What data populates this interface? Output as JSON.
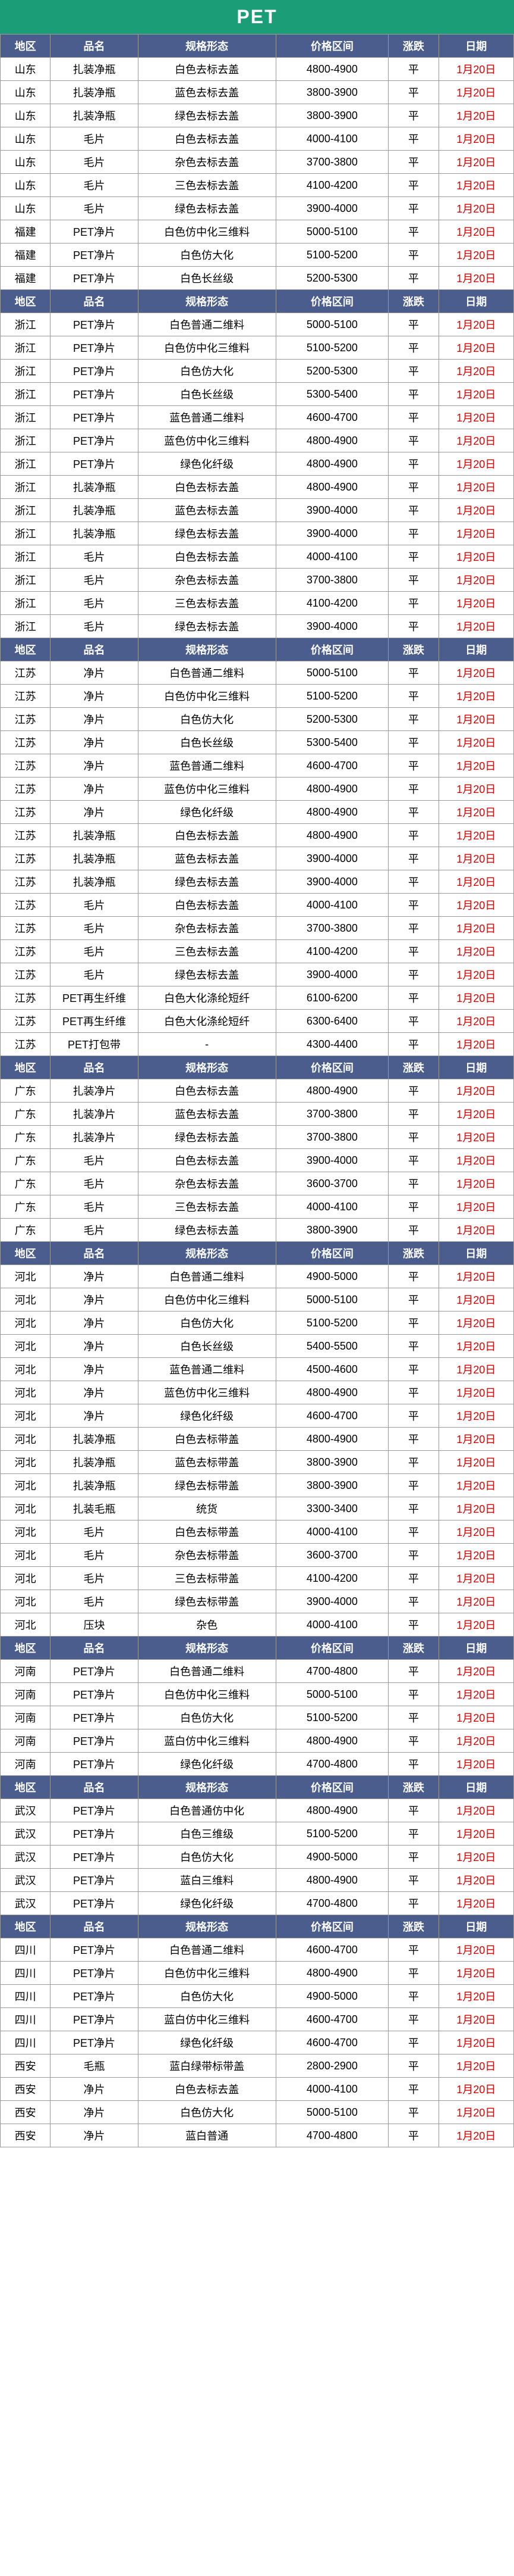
{
  "title": "PET",
  "headers": [
    "地区",
    "品名",
    "规格形态",
    "价格区间",
    "涨跌",
    "日期"
  ],
  "sections": [
    {
      "header": true,
      "rows": [
        {
          "r": "山东",
          "n": "扎装净瓶",
          "s": "白色去标去盖",
          "p": "4800-4900",
          "t": "平",
          "d": "1月20日"
        },
        {
          "r": "山东",
          "n": "扎装净瓶",
          "s": "蓝色去标去盖",
          "p": "3800-3900",
          "t": "平",
          "d": "1月20日"
        },
        {
          "r": "山东",
          "n": "扎装净瓶",
          "s": "绿色去标去盖",
          "p": "3800-3900",
          "t": "平",
          "d": "1月20日"
        },
        {
          "r": "山东",
          "n": "毛片",
          "s": "白色去标去盖",
          "p": "4000-4100",
          "t": "平",
          "d": "1月20日"
        },
        {
          "r": "山东",
          "n": "毛片",
          "s": "杂色去标去盖",
          "p": "3700-3800",
          "t": "平",
          "d": "1月20日"
        },
        {
          "r": "山东",
          "n": "毛片",
          "s": "三色去标去盖",
          "p": "4100-4200",
          "t": "平",
          "d": "1月20日"
        },
        {
          "r": "山东",
          "n": "毛片",
          "s": "绿色去标去盖",
          "p": "3900-4000",
          "t": "平",
          "d": "1月20日"
        },
        {
          "r": "福建",
          "n": "PET净片",
          "s": "白色仿中化三维料",
          "p": "5000-5100",
          "t": "平",
          "d": "1月20日"
        },
        {
          "r": "福建",
          "n": "PET净片",
          "s": "白色仿大化",
          "p": "5100-5200",
          "t": "平",
          "d": "1月20日"
        },
        {
          "r": "福建",
          "n": "PET净片",
          "s": "白色长丝级",
          "p": "5200-5300",
          "t": "平",
          "d": "1月20日"
        }
      ]
    },
    {
      "header": true,
      "rows": [
        {
          "r": "浙江",
          "n": "PET净片",
          "s": "白色普通二维料",
          "p": "5000-5100",
          "t": "平",
          "d": "1月20日"
        },
        {
          "r": "浙江",
          "n": "PET净片",
          "s": "白色仿中化三维料",
          "p": "5100-5200",
          "t": "平",
          "d": "1月20日"
        },
        {
          "r": "浙江",
          "n": "PET净片",
          "s": "白色仿大化",
          "p": "5200-5300",
          "t": "平",
          "d": "1月20日"
        },
        {
          "r": "浙江",
          "n": "PET净片",
          "s": "白色长丝级",
          "p": "5300-5400",
          "t": "平",
          "d": "1月20日"
        },
        {
          "r": "浙江",
          "n": "PET净片",
          "s": "蓝色普通二维料",
          "p": "4600-4700",
          "t": "平",
          "d": "1月20日"
        },
        {
          "r": "浙江",
          "n": "PET净片",
          "s": "蓝色仿中化三维料",
          "p": "4800-4900",
          "t": "平",
          "d": "1月20日"
        },
        {
          "r": "浙江",
          "n": "PET净片",
          "s": "绿色化纤级",
          "p": "4800-4900",
          "t": "平",
          "d": "1月20日"
        },
        {
          "r": "浙江",
          "n": "扎装净瓶",
          "s": "白色去标去盖",
          "p": "4800-4900",
          "t": "平",
          "d": "1月20日"
        },
        {
          "r": "浙江",
          "n": "扎装净瓶",
          "s": "蓝色去标去盖",
          "p": "3900-4000",
          "t": "平",
          "d": "1月20日"
        },
        {
          "r": "浙江",
          "n": "扎装净瓶",
          "s": "绿色去标去盖",
          "p": "3900-4000",
          "t": "平",
          "d": "1月20日"
        },
        {
          "r": "浙江",
          "n": "毛片",
          "s": "白色去标去盖",
          "p": "4000-4100",
          "t": "平",
          "d": "1月20日"
        },
        {
          "r": "浙江",
          "n": "毛片",
          "s": "杂色去标去盖",
          "p": "3700-3800",
          "t": "平",
          "d": "1月20日"
        },
        {
          "r": "浙江",
          "n": "毛片",
          "s": "三色去标去盖",
          "p": "4100-4200",
          "t": "平",
          "d": "1月20日"
        },
        {
          "r": "浙江",
          "n": "毛片",
          "s": "绿色去标去盖",
          "p": "3900-4000",
          "t": "平",
          "d": "1月20日"
        }
      ]
    },
    {
      "header": true,
      "rows": [
        {
          "r": "江苏",
          "n": "净片",
          "s": "白色普通二维料",
          "p": "5000-5100",
          "t": "平",
          "d": "1月20日"
        },
        {
          "r": "江苏",
          "n": "净片",
          "s": "白色仿中化三维料",
          "p": "5100-5200",
          "t": "平",
          "d": "1月20日"
        },
        {
          "r": "江苏",
          "n": "净片",
          "s": "白色仿大化",
          "p": "5200-5300",
          "t": "平",
          "d": "1月20日"
        },
        {
          "r": "江苏",
          "n": "净片",
          "s": "白色长丝级",
          "p": "5300-5400",
          "t": "平",
          "d": "1月20日"
        },
        {
          "r": "江苏",
          "n": "净片",
          "s": "蓝色普通二维料",
          "p": "4600-4700",
          "t": "平",
          "d": "1月20日"
        },
        {
          "r": "江苏",
          "n": "净片",
          "s": "蓝色仿中化三维料",
          "p": "4800-4900",
          "t": "平",
          "d": "1月20日"
        },
        {
          "r": "江苏",
          "n": "净片",
          "s": "绿色化纤级",
          "p": "4800-4900",
          "t": "平",
          "d": "1月20日"
        },
        {
          "r": "江苏",
          "n": "扎装净瓶",
          "s": "白色去标去盖",
          "p": "4800-4900",
          "t": "平",
          "d": "1月20日"
        },
        {
          "r": "江苏",
          "n": "扎装净瓶",
          "s": "蓝色去标去盖",
          "p": "3900-4000",
          "t": "平",
          "d": "1月20日"
        },
        {
          "r": "江苏",
          "n": "扎装净瓶",
          "s": "绿色去标去盖",
          "p": "3900-4000",
          "t": "平",
          "d": "1月20日"
        },
        {
          "r": "江苏",
          "n": "毛片",
          "s": "白色去标去盖",
          "p": "4000-4100",
          "t": "平",
          "d": "1月20日"
        },
        {
          "r": "江苏",
          "n": "毛片",
          "s": "杂色去标去盖",
          "p": "3700-3800",
          "t": "平",
          "d": "1月20日"
        },
        {
          "r": "江苏",
          "n": "毛片",
          "s": "三色去标去盖",
          "p": "4100-4200",
          "t": "平",
          "d": "1月20日"
        },
        {
          "r": "江苏",
          "n": "毛片",
          "s": "绿色去标去盖",
          "p": "3900-4000",
          "t": "平",
          "d": "1月20日"
        },
        {
          "r": "江苏",
          "n": "PET再生纤维",
          "s": "白色大化涤纶短纤",
          "p": "6100-6200",
          "t": "平",
          "d": "1月20日"
        },
        {
          "r": "江苏",
          "n": "PET再生纤维",
          "s": "白色大化涤纶短纤",
          "p": "6300-6400",
          "t": "平",
          "d": "1月20日"
        },
        {
          "r": "江苏",
          "n": "PET打包带",
          "s": "-",
          "p": "4300-4400",
          "t": "平",
          "d": "1月20日"
        }
      ]
    },
    {
      "header": true,
      "rows": [
        {
          "r": "广东",
          "n": "扎装净片",
          "s": "白色去标去盖",
          "p": "4800-4900",
          "t": "平",
          "d": "1月20日"
        },
        {
          "r": "广东",
          "n": "扎装净片",
          "s": "蓝色去标去盖",
          "p": "3700-3800",
          "t": "平",
          "d": "1月20日"
        },
        {
          "r": "广东",
          "n": "扎装净片",
          "s": "绿色去标去盖",
          "p": "3700-3800",
          "t": "平",
          "d": "1月20日"
        },
        {
          "r": "广东",
          "n": "毛片",
          "s": "白色去标去盖",
          "p": "3900-4000",
          "t": "平",
          "d": "1月20日"
        },
        {
          "r": "广东",
          "n": "毛片",
          "s": "杂色去标去盖",
          "p": "3600-3700",
          "t": "平",
          "d": "1月20日"
        },
        {
          "r": "广东",
          "n": "毛片",
          "s": "三色去标去盖",
          "p": "4000-4100",
          "t": "平",
          "d": "1月20日"
        },
        {
          "r": "广东",
          "n": "毛片",
          "s": "绿色去标去盖",
          "p": "3800-3900",
          "t": "平",
          "d": "1月20日"
        }
      ]
    },
    {
      "header": true,
      "rows": [
        {
          "r": "河北",
          "n": "净片",
          "s": "白色普通二维料",
          "p": "4900-5000",
          "t": "平",
          "d": "1月20日"
        },
        {
          "r": "河北",
          "n": "净片",
          "s": "白色仿中化三维料",
          "p": "5000-5100",
          "t": "平",
          "d": "1月20日"
        },
        {
          "r": "河北",
          "n": "净片",
          "s": "白色仿大化",
          "p": "5100-5200",
          "t": "平",
          "d": "1月20日"
        },
        {
          "r": "河北",
          "n": "净片",
          "s": "白色长丝级",
          "p": "5400-5500",
          "t": "平",
          "d": "1月20日"
        },
        {
          "r": "河北",
          "n": "净片",
          "s": "蓝色普通二维料",
          "p": "4500-4600",
          "t": "平",
          "d": "1月20日"
        },
        {
          "r": "河北",
          "n": "净片",
          "s": "蓝色仿中化三维料",
          "p": "4800-4900",
          "t": "平",
          "d": "1月20日"
        },
        {
          "r": "河北",
          "n": "净片",
          "s": "绿色化纤级",
          "p": "4600-4700",
          "t": "平",
          "d": "1月20日"
        },
        {
          "r": "河北",
          "n": "扎装净瓶",
          "s": "白色去标带盖",
          "p": "4800-4900",
          "t": "平",
          "d": "1月20日"
        },
        {
          "r": "河北",
          "n": "扎装净瓶",
          "s": "蓝色去标带盖",
          "p": "3800-3900",
          "t": "平",
          "d": "1月20日"
        },
        {
          "r": "河北",
          "n": "扎装净瓶",
          "s": "绿色去标带盖",
          "p": "3800-3900",
          "t": "平",
          "d": "1月20日"
        },
        {
          "r": "河北",
          "n": "扎装毛瓶",
          "s": "统货",
          "p": "3300-3400",
          "t": "平",
          "d": "1月20日"
        },
        {
          "r": "河北",
          "n": "毛片",
          "s": "白色去标带盖",
          "p": "4000-4100",
          "t": "平",
          "d": "1月20日"
        },
        {
          "r": "河北",
          "n": "毛片",
          "s": "杂色去标带盖",
          "p": "3600-3700",
          "t": "平",
          "d": "1月20日"
        },
        {
          "r": "河北",
          "n": "毛片",
          "s": "三色去标带盖",
          "p": "4100-4200",
          "t": "平",
          "d": "1月20日"
        },
        {
          "r": "河北",
          "n": "毛片",
          "s": "绿色去标带盖",
          "p": "3900-4000",
          "t": "平",
          "d": "1月20日"
        },
        {
          "r": "河北",
          "n": "压块",
          "s": "杂色",
          "p": "4000-4100",
          "t": "平",
          "d": "1月20日"
        }
      ]
    },
    {
      "header": true,
      "rows": [
        {
          "r": "河南",
          "n": "PET净片",
          "s": "白色普通二维料",
          "p": "4700-4800",
          "t": "平",
          "d": "1月20日"
        },
        {
          "r": "河南",
          "n": "PET净片",
          "s": "白色仿中化三维料",
          "p": "5000-5100",
          "t": "平",
          "d": "1月20日"
        },
        {
          "r": "河南",
          "n": "PET净片",
          "s": "白色仿大化",
          "p": "5100-5200",
          "t": "平",
          "d": "1月20日"
        },
        {
          "r": "河南",
          "n": "PET净片",
          "s": "蓝白仿中化三维料",
          "p": "4800-4900",
          "t": "平",
          "d": "1月20日"
        },
        {
          "r": "河南",
          "n": "PET净片",
          "s": "绿色化纤级",
          "p": "4700-4800",
          "t": "平",
          "d": "1月20日"
        }
      ]
    },
    {
      "header": true,
      "rows": [
        {
          "r": "武汉",
          "n": "PET净片",
          "s": "白色普通仿中化",
          "p": "4800-4900",
          "t": "平",
          "d": "1月20日"
        },
        {
          "r": "武汉",
          "n": "PET净片",
          "s": "白色三维级",
          "p": "5100-5200",
          "t": "平",
          "d": "1月20日"
        },
        {
          "r": "武汉",
          "n": "PET净片",
          "s": "白色仿大化",
          "p": "4900-5000",
          "t": "平",
          "d": "1月20日"
        },
        {
          "r": "武汉",
          "n": "PET净片",
          "s": "蓝白三维料",
          "p": "4800-4900",
          "t": "平",
          "d": "1月20日"
        },
        {
          "r": "武汉",
          "n": "PET净片",
          "s": "绿色化纤级",
          "p": "4700-4800",
          "t": "平",
          "d": "1月20日"
        }
      ]
    },
    {
      "header": true,
      "rows": [
        {
          "r": "四川",
          "n": "PET净片",
          "s": "白色普通二维料",
          "p": "4600-4700",
          "t": "平",
          "d": "1月20日"
        },
        {
          "r": "四川",
          "n": "PET净片",
          "s": "白色仿中化三维料",
          "p": "4800-4900",
          "t": "平",
          "d": "1月20日"
        },
        {
          "r": "四川",
          "n": "PET净片",
          "s": "白色仿大化",
          "p": "4900-5000",
          "t": "平",
          "d": "1月20日"
        },
        {
          "r": "四川",
          "n": "PET净片",
          "s": "蓝白仿中化三维料",
          "p": "4600-4700",
          "t": "平",
          "d": "1月20日"
        },
        {
          "r": "四川",
          "n": "PET净片",
          "s": "绿色化纤级",
          "p": "4600-4700",
          "t": "平",
          "d": "1月20日"
        },
        {
          "r": "西安",
          "n": "毛瓶",
          "s": "蓝白绿带标带盖",
          "p": "2800-2900",
          "t": "平",
          "d": "1月20日"
        },
        {
          "r": "西安",
          "n": "净片",
          "s": "白色去标去盖",
          "p": "4000-4100",
          "t": "平",
          "d": "1月20日"
        },
        {
          "r": "西安",
          "n": "净片",
          "s": "白色仿大化",
          "p": "5000-5100",
          "t": "平",
          "d": "1月20日"
        },
        {
          "r": "西安",
          "n": "净片",
          "s": "蓝白普通",
          "p": "4700-4800",
          "t": "平",
          "d": "1月20日"
        }
      ]
    }
  ]
}
